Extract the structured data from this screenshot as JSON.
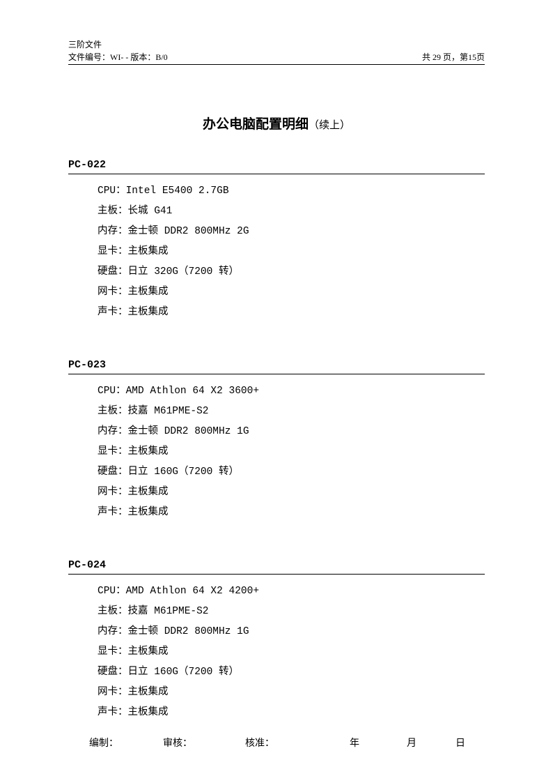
{
  "header": {
    "line1": "三阶文件",
    "doc_number_label": "文件编号：WI-  -   版本：B/0",
    "page_info": "共 29 页，第15页"
  },
  "title": {
    "main": "办公电脑配置明细",
    "suffix": "（续上）"
  },
  "sections": [
    {
      "id": "PC-022",
      "specs": [
        "CPU：Intel E5400 2.7GB",
        "主板：长城 G41",
        "内存：金士顿 DDR2 800MHz 2G",
        "显卡：主板集成",
        "硬盘：日立 320G（7200 转）",
        "网卡：主板集成",
        "声卡：主板集成"
      ]
    },
    {
      "id": "PC-023",
      "specs": [
        "CPU：AMD Athlon 64 X2 3600+",
        "主板：技嘉 M61PME-S2",
        "内存：金士顿 DDR2 800MHz 1G",
        "显卡：主板集成",
        "硬盘：日立 160G（7200 转）",
        "网卡：主板集成",
        "声卡：主板集成"
      ]
    },
    {
      "id": "PC-024",
      "specs": [
        "CPU：AMD Athlon 64 X2 4200+",
        "主板：技嘉 M61PME-S2",
        "内存：金士顿 DDR2 800MHz 1G",
        "显卡：主板集成",
        "硬盘：日立 160G（7200 转）",
        "网卡：主板集成",
        "声卡：主板集成"
      ]
    }
  ],
  "footer": {
    "f1": "编制：",
    "f2": "审核：",
    "f3": "核准：",
    "f4": "年",
    "f5": "月",
    "f6": "日"
  }
}
